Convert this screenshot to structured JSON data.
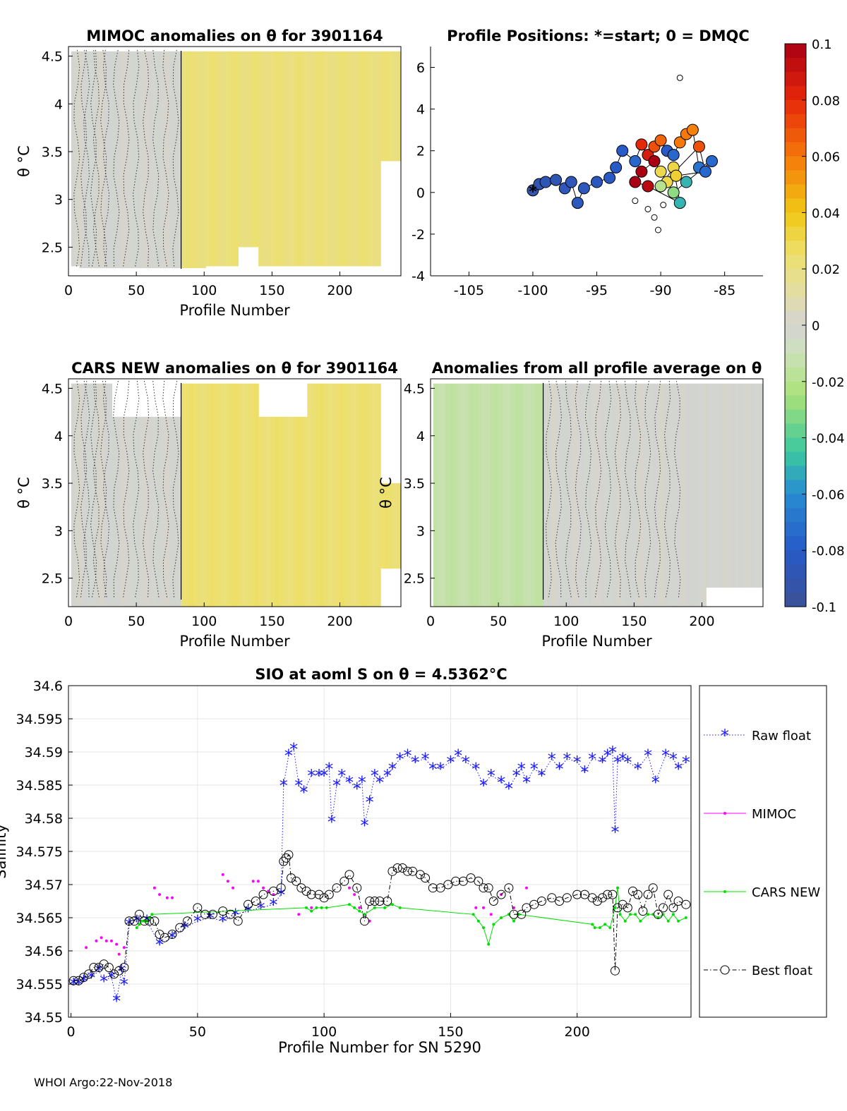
{
  "footer": "WHOI Argo:22-Nov-2018",
  "colors": {
    "raw": "#1a1aff",
    "mimoc": "#ff00ff",
    "cars": "#00e000",
    "best": "#000000",
    "map_fill": "#d3d3d3",
    "yellow_anom": "#ede07a",
    "green_anom": "#b8e08a"
  },
  "chart_data": [
    {
      "id": "mimoc-anom",
      "type": "heatmap",
      "title": "MIMOC anomalies on θ  for 3901164",
      "xlabel": "Profile Number",
      "ylabel": "θ °C",
      "xlim": [
        0,
        245
      ],
      "ylim": [
        2.2,
        4.6
      ],
      "xticks": [
        0,
        50,
        100,
        150,
        200
      ],
      "yticks": [
        2.5,
        3,
        3.5,
        4,
        4.5
      ],
      "segments": [
        {
          "x0": 2,
          "x1": 83,
          "anomaly": 0.0
        },
        {
          "x0": 83,
          "x1": 245,
          "anomaly": 0.022
        }
      ],
      "dmqc_line_x": 83
    },
    {
      "id": "positions",
      "type": "scatter",
      "title": "Profile Positions: *=start; 0 = DMQC",
      "xlabel": "",
      "ylabel": "",
      "xlim": [
        -108,
        -82
      ],
      "ylim": [
        -4,
        7
      ],
      "xticks": [
        -105,
        -100,
        -95,
        -90,
        -85
      ],
      "yticks": [
        -4,
        -2,
        0,
        2,
        4,
        6
      ],
      "points": [
        {
          "x": -100,
          "y": 0.1,
          "c": -0.09
        },
        {
          "x": -99.5,
          "y": 0.4,
          "c": -0.09
        },
        {
          "x": -99,
          "y": 0.5,
          "c": -0.088
        },
        {
          "x": -98.2,
          "y": 0.6,
          "c": -0.088
        },
        {
          "x": -97.5,
          "y": 0.2,
          "c": -0.086
        },
        {
          "x": -97,
          "y": 0.5,
          "c": -0.086
        },
        {
          "x": -96.5,
          "y": -0.5,
          "c": -0.085
        },
        {
          "x": -96,
          "y": 0.2,
          "c": -0.085
        },
        {
          "x": -95,
          "y": 0.5,
          "c": -0.084
        },
        {
          "x": -94,
          "y": 0.7,
          "c": -0.082
        },
        {
          "x": -93.5,
          "y": 1.2,
          "c": -0.08
        },
        {
          "x": -93,
          "y": 2.0,
          "c": -0.08
        },
        {
          "x": -92,
          "y": 1.5,
          "c": -0.075
        },
        {
          "x": -91.5,
          "y": 2.3,
          "c": 0.08
        },
        {
          "x": -91,
          "y": 1.8,
          "c": 0.085
        },
        {
          "x": -90.5,
          "y": 2.2,
          "c": 0.07
        },
        {
          "x": -90,
          "y": 2.5,
          "c": 0.065
        },
        {
          "x": -89.5,
          "y": 2.0,
          "c": -0.08
        },
        {
          "x": -89,
          "y": 1.8,
          "c": -0.075
        },
        {
          "x": -88.5,
          "y": 2.4,
          "c": 0.06
        },
        {
          "x": -88,
          "y": 2.8,
          "c": 0.06
        },
        {
          "x": -87.5,
          "y": 3.0,
          "c": 0.058
        },
        {
          "x": -87,
          "y": 1.2,
          "c": -0.07
        },
        {
          "x": -86,
          "y": 1.5,
          "c": -0.075
        },
        {
          "x": -88,
          "y": 0.5,
          "c": -0.05
        },
        {
          "x": -89,
          "y": 0.0,
          "c": -0.03
        },
        {
          "x": -89.5,
          "y": 0.5,
          "c": 0.03
        },
        {
          "x": -90,
          "y": 1.0,
          "c": 0.03
        },
        {
          "x": -90.5,
          "y": 1.5,
          "c": 0.1
        },
        {
          "x": -91.5,
          "y": 1.0,
          "c": 0.1
        },
        {
          "x": -92,
          "y": 0.5,
          "c": 0.1
        },
        {
          "x": -91,
          "y": 0.3,
          "c": 0.095
        },
        {
          "x": -88.5,
          "y": -0.5,
          "c": -0.05
        },
        {
          "x": -89,
          "y": 1.2,
          "c": 0.032
        },
        {
          "x": -90,
          "y": 0.3,
          "c": -0.02
        },
        {
          "x": -87,
          "y": 2.2,
          "c": 0.07
        },
        {
          "x": -86.5,
          "y": 1.0,
          "c": -0.075
        },
        {
          "x": -88.8,
          "y": 0.8,
          "c": 0.035
        }
      ],
      "dmqc_markers": [
        {
          "x": -91,
          "y": -0.8
        },
        {
          "x": -90.5,
          "y": -1.2
        },
        {
          "x": -89.8,
          "y": -0.6
        },
        {
          "x": -90.2,
          "y": -1.8
        },
        {
          "x": -92,
          "y": -0.4
        },
        {
          "x": -88.5,
          "y": 5.5
        }
      ],
      "start_marker": {
        "x": -100,
        "y": 0
      }
    },
    {
      "id": "colorbar",
      "type": "colorbar",
      "clim": [
        -0.1,
        0.1
      ],
      "ticks": [
        "0.1",
        "0.08",
        "0.06",
        "0.04",
        "0.02",
        "0",
        "-0.02",
        "-0.04",
        "-0.06",
        "-0.08",
        "-0.1"
      ]
    },
    {
      "id": "cars-anom",
      "type": "heatmap",
      "title": "CARS NEW anomalies on θ for 3901164",
      "xlabel": "Profile Number",
      "ylabel": "θ °C",
      "xlim": [
        0,
        245
      ],
      "ylim": [
        2.2,
        4.6
      ],
      "xticks": [
        0,
        50,
        100,
        150,
        200
      ],
      "yticks": [
        2.5,
        3,
        3.5,
        4,
        4.5
      ],
      "segments": [
        {
          "x0": 2,
          "x1": 83,
          "anomaly": 0.0
        },
        {
          "x0": 83,
          "x1": 245,
          "anomaly": 0.024
        }
      ],
      "dmqc_line_x": 83
    },
    {
      "id": "all-avg-anom",
      "type": "heatmap",
      "title": "Anomalies from all profile average on θ",
      "xlabel": "Profile Number",
      "ylabel": "θ °C",
      "xlim": [
        0,
        245
      ],
      "ylim": [
        2.2,
        4.6
      ],
      "xticks": [
        0,
        50,
        100,
        150,
        200
      ],
      "yticks": [
        2.5,
        3,
        3.5,
        4,
        4.5
      ],
      "segments": [
        {
          "x0": 2,
          "x1": 83,
          "anomaly": -0.014
        },
        {
          "x0": 83,
          "x1": 245,
          "anomaly": 0.0
        }
      ],
      "dmqc_line_x": 83
    },
    {
      "id": "salinity",
      "type": "line",
      "title": "SIO at aoml S on θ = 4.5362°C",
      "xlabel": "Profile Number for SN 5290",
      "ylabel": "Salinity",
      "xlim": [
        -1,
        245
      ],
      "ylim": [
        34.55,
        34.6
      ],
      "xticks": [
        0,
        50,
        100,
        150,
        200
      ],
      "yticks": [
        34.55,
        34.555,
        34.56,
        34.565,
        34.57,
        34.575,
        34.58,
        34.585,
        34.59,
        34.595,
        34.6
      ],
      "ytick_labels": [
        "34.55",
        "34.555",
        "34.56",
        "34.565",
        "34.57",
        "34.575",
        "34.58",
        "34.585",
        "34.59",
        "34.595",
        "34.6"
      ],
      "legend": [
        "Raw float",
        "MIMOC",
        "CARS NEW",
        "Best float"
      ],
      "series": [
        {
          "name": "Raw float",
          "x": [
            1,
            3,
            5,
            8,
            11,
            13,
            16,
            18,
            20,
            21,
            23,
            26,
            30,
            35,
            40,
            45,
            50,
            55,
            60,
            65,
            70,
            75,
            80,
            83,
            84,
            86,
            88,
            90,
            92,
            95,
            98,
            100,
            102,
            103,
            105,
            107,
            110,
            113,
            115,
            116,
            118,
            120,
            122,
            125,
            127,
            130,
            133,
            136,
            140,
            143,
            146,
            150,
            153,
            156,
            160,
            163,
            166,
            170,
            173,
            176,
            178,
            180,
            183,
            186,
            190,
            193,
            196,
            200,
            203,
            206,
            210,
            212,
            214,
            215,
            216,
            218,
            220,
            224,
            228,
            231,
            235,
            238,
            240,
            243
          ],
          "y": [
            34.555,
            34.555,
            34.5555,
            34.556,
            34.557,
            34.5555,
            34.556,
            34.5525,
            34.557,
            34.555,
            34.564,
            34.5645,
            34.5645,
            34.561,
            34.562,
            34.5635,
            34.5645,
            34.565,
            34.5645,
            34.5655,
            34.566,
            34.5665,
            34.567,
            34.5685,
            34.585,
            34.5895,
            34.5905,
            34.585,
            34.584,
            34.5865,
            34.5865,
            34.5865,
            34.5875,
            34.5795,
            34.585,
            34.5865,
            34.5855,
            34.5845,
            34.5855,
            34.579,
            34.5825,
            34.5865,
            34.5855,
            34.5865,
            34.5875,
            34.589,
            34.5895,
            34.5885,
            34.589,
            34.5875,
            34.5875,
            34.5885,
            34.5895,
            34.5885,
            34.5875,
            34.585,
            34.5865,
            34.5855,
            34.5845,
            34.5865,
            34.5875,
            34.5855,
            34.5875,
            34.5865,
            34.589,
            34.5875,
            34.589,
            34.5885,
            34.587,
            34.589,
            34.5885,
            34.5895,
            34.59,
            34.578,
            34.5885,
            34.589,
            34.5885,
            34.5875,
            34.5895,
            34.5855,
            34.5895,
            34.589,
            34.5875,
            34.5885
          ]
        },
        {
          "name": "MIMOC",
          "x": [
            6,
            10,
            12,
            14,
            16,
            18,
            19,
            21,
            33,
            35,
            38,
            40,
            60,
            62,
            64,
            72,
            74,
            76,
            78,
            80,
            90,
            95,
            110,
            112,
            114,
            116,
            118,
            160,
            163,
            166,
            170,
            175,
            180,
            215,
            216
          ],
          "y": [
            34.5605,
            34.5615,
            34.562,
            34.5615,
            34.5615,
            34.561,
            34.5595,
            34.5605,
            34.5695,
            34.5685,
            34.568,
            34.568,
            34.5715,
            34.5705,
            34.5695,
            34.5705,
            34.5705,
            34.5695,
            34.569,
            34.5685,
            34.5655,
            34.5665,
            34.5695,
            34.5685,
            34.5665,
            34.5655,
            34.5645,
            34.5665,
            34.5665,
            34.5655,
            34.5685,
            34.5665,
            34.5695,
            34.5665,
            34.5695
          ]
        },
        {
          "name": "CARS NEW",
          "x": [
            26,
            27,
            28,
            29,
            30,
            31,
            32,
            93,
            95,
            97,
            99,
            101,
            110,
            112,
            114,
            116,
            120,
            124,
            127,
            130,
            159,
            161,
            163,
            165,
            167,
            170,
            173,
            175,
            177,
            206,
            207,
            209,
            211,
            213,
            215,
            216,
            217,
            219,
            221,
            223,
            225,
            228,
            230,
            232,
            234,
            236,
            238,
            240,
            243
          ],
          "y": [
            34.5635,
            34.564,
            34.5645,
            34.5645,
            34.5645,
            34.565,
            34.5655,
            34.5665,
            34.566,
            34.5665,
            34.5665,
            34.5665,
            34.567,
            34.5665,
            34.566,
            34.5655,
            34.5665,
            34.5665,
            34.567,
            34.5665,
            34.5655,
            34.5645,
            34.5635,
            34.561,
            34.564,
            34.565,
            34.5655,
            34.5645,
            34.5655,
            34.564,
            34.5635,
            34.5635,
            34.564,
            34.5635,
            34.5665,
            34.5695,
            34.5655,
            34.5645,
            34.5655,
            34.5655,
            34.5645,
            34.5655,
            34.5655,
            34.565,
            34.5655,
            34.5645,
            34.5655,
            34.5645,
            34.565
          ]
        },
        {
          "name": "Best float",
          "x": [
            1,
            3,
            5,
            7,
            9,
            11,
            13,
            15,
            17,
            19,
            21,
            23,
            25,
            27,
            29,
            31,
            33,
            35,
            37,
            40,
            43,
            46,
            50,
            53,
            56,
            60,
            63,
            66,
            70,
            73,
            76,
            80,
            83,
            84,
            85,
            86,
            87,
            89,
            91,
            93,
            95,
            98,
            100,
            102,
            105,
            108,
            110,
            113,
            116,
            118,
            120,
            122,
            125,
            127,
            129,
            131,
            133,
            135,
            138,
            140,
            143,
            146,
            149,
            152,
            155,
            158,
            161,
            163,
            165,
            167,
            170,
            173,
            175,
            178,
            180,
            183,
            186,
            190,
            193,
            196,
            200,
            203,
            206,
            208,
            210,
            212,
            214,
            215,
            216,
            218,
            220,
            222,
            224,
            226,
            228,
            230,
            232,
            234,
            236,
            238,
            240,
            243
          ],
          "y": [
            34.5555,
            34.5555,
            34.556,
            34.5565,
            34.5575,
            34.5575,
            34.558,
            34.5575,
            34.5565,
            34.557,
            34.5575,
            34.5645,
            34.5645,
            34.5655,
            34.5645,
            34.5645,
            34.5645,
            34.5625,
            34.562,
            34.5625,
            34.5635,
            34.5645,
            34.5665,
            34.5655,
            34.5655,
            34.566,
            34.5655,
            34.5645,
            34.567,
            34.5675,
            34.5685,
            34.569,
            34.5695,
            34.5735,
            34.574,
            34.5745,
            34.571,
            34.5705,
            34.5695,
            34.569,
            34.5685,
            34.5685,
            34.568,
            34.5685,
            34.5695,
            34.5705,
            34.5715,
            34.5695,
            34.5645,
            34.5675,
            34.5675,
            34.5675,
            34.5675,
            34.572,
            34.5725,
            34.5725,
            34.572,
            34.572,
            34.5715,
            34.571,
            34.5695,
            34.5695,
            34.57,
            34.5705,
            34.5705,
            34.571,
            34.5705,
            34.5695,
            34.5695,
            34.5675,
            34.5685,
            34.5695,
            34.5655,
            34.5655,
            34.5665,
            34.567,
            34.5675,
            34.568,
            34.5675,
            34.568,
            34.5685,
            34.5685,
            34.568,
            34.5675,
            34.568,
            34.5685,
            34.5685,
            34.557,
            34.5665,
            34.567,
            34.5665,
            34.569,
            34.5685,
            34.566,
            34.5685,
            34.5695,
            34.5655,
            34.5665,
            34.5685,
            34.5665,
            34.5675,
            34.567
          ]
        }
      ]
    }
  ]
}
